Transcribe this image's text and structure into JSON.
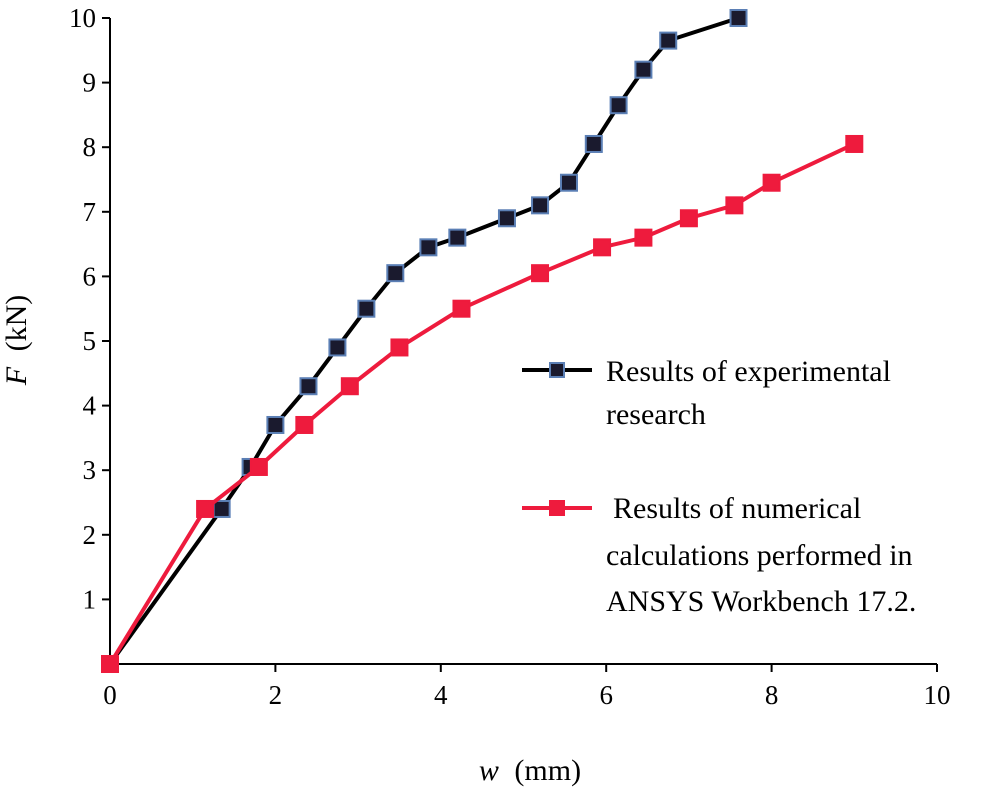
{
  "chart_data": {
    "type": "line",
    "xlabel_var": "w",
    "xlabel_unit": "(mm)",
    "ylabel_var": "F",
    "ylabel_unit": "(kN)",
    "xlim": [
      0,
      10
    ],
    "ylim": [
      0,
      10
    ],
    "xticks": [
      0,
      2,
      4,
      6,
      8,
      10
    ],
    "yticks": [
      1,
      2,
      3,
      4,
      5,
      6,
      7,
      8,
      9,
      10
    ],
    "grid": false,
    "legend_position": "right",
    "series": [
      {
        "name_lines": [
          "Results of experimental",
          "research"
        ],
        "color": "#000000",
        "marker_color": "#1a1a2e",
        "marker_edge": "#5b7fb5",
        "x": [
          0,
          1.35,
          1.7,
          2.0,
          2.4,
          2.75,
          3.1,
          3.45,
          3.85,
          4.2,
          4.8,
          5.2,
          5.55,
          5.85,
          6.15,
          6.45,
          6.75,
          7.6
        ],
        "y": [
          0,
          2.4,
          3.05,
          3.7,
          4.3,
          4.9,
          5.5,
          6.05,
          6.45,
          6.6,
          6.9,
          7.1,
          7.45,
          8.05,
          8.65,
          9.2,
          9.65,
          10.0
        ]
      },
      {
        "name_lines": [
          "Results of numerical",
          "calculations performed in",
          "ANSYS Workbench 17.2."
        ],
        "color": "#ee1b3d",
        "marker_color": "#ee1b3d",
        "marker_edge": "#ee1b3d",
        "x": [
          0,
          1.15,
          1.8,
          2.35,
          2.9,
          3.5,
          4.25,
          5.2,
          5.95,
          6.45,
          7.0,
          7.55,
          8.0,
          9.0
        ],
        "y": [
          0,
          2.4,
          3.05,
          3.7,
          4.3,
          4.9,
          5.5,
          6.05,
          6.45,
          6.6,
          6.9,
          7.1,
          7.45,
          8.05
        ]
      }
    ]
  }
}
